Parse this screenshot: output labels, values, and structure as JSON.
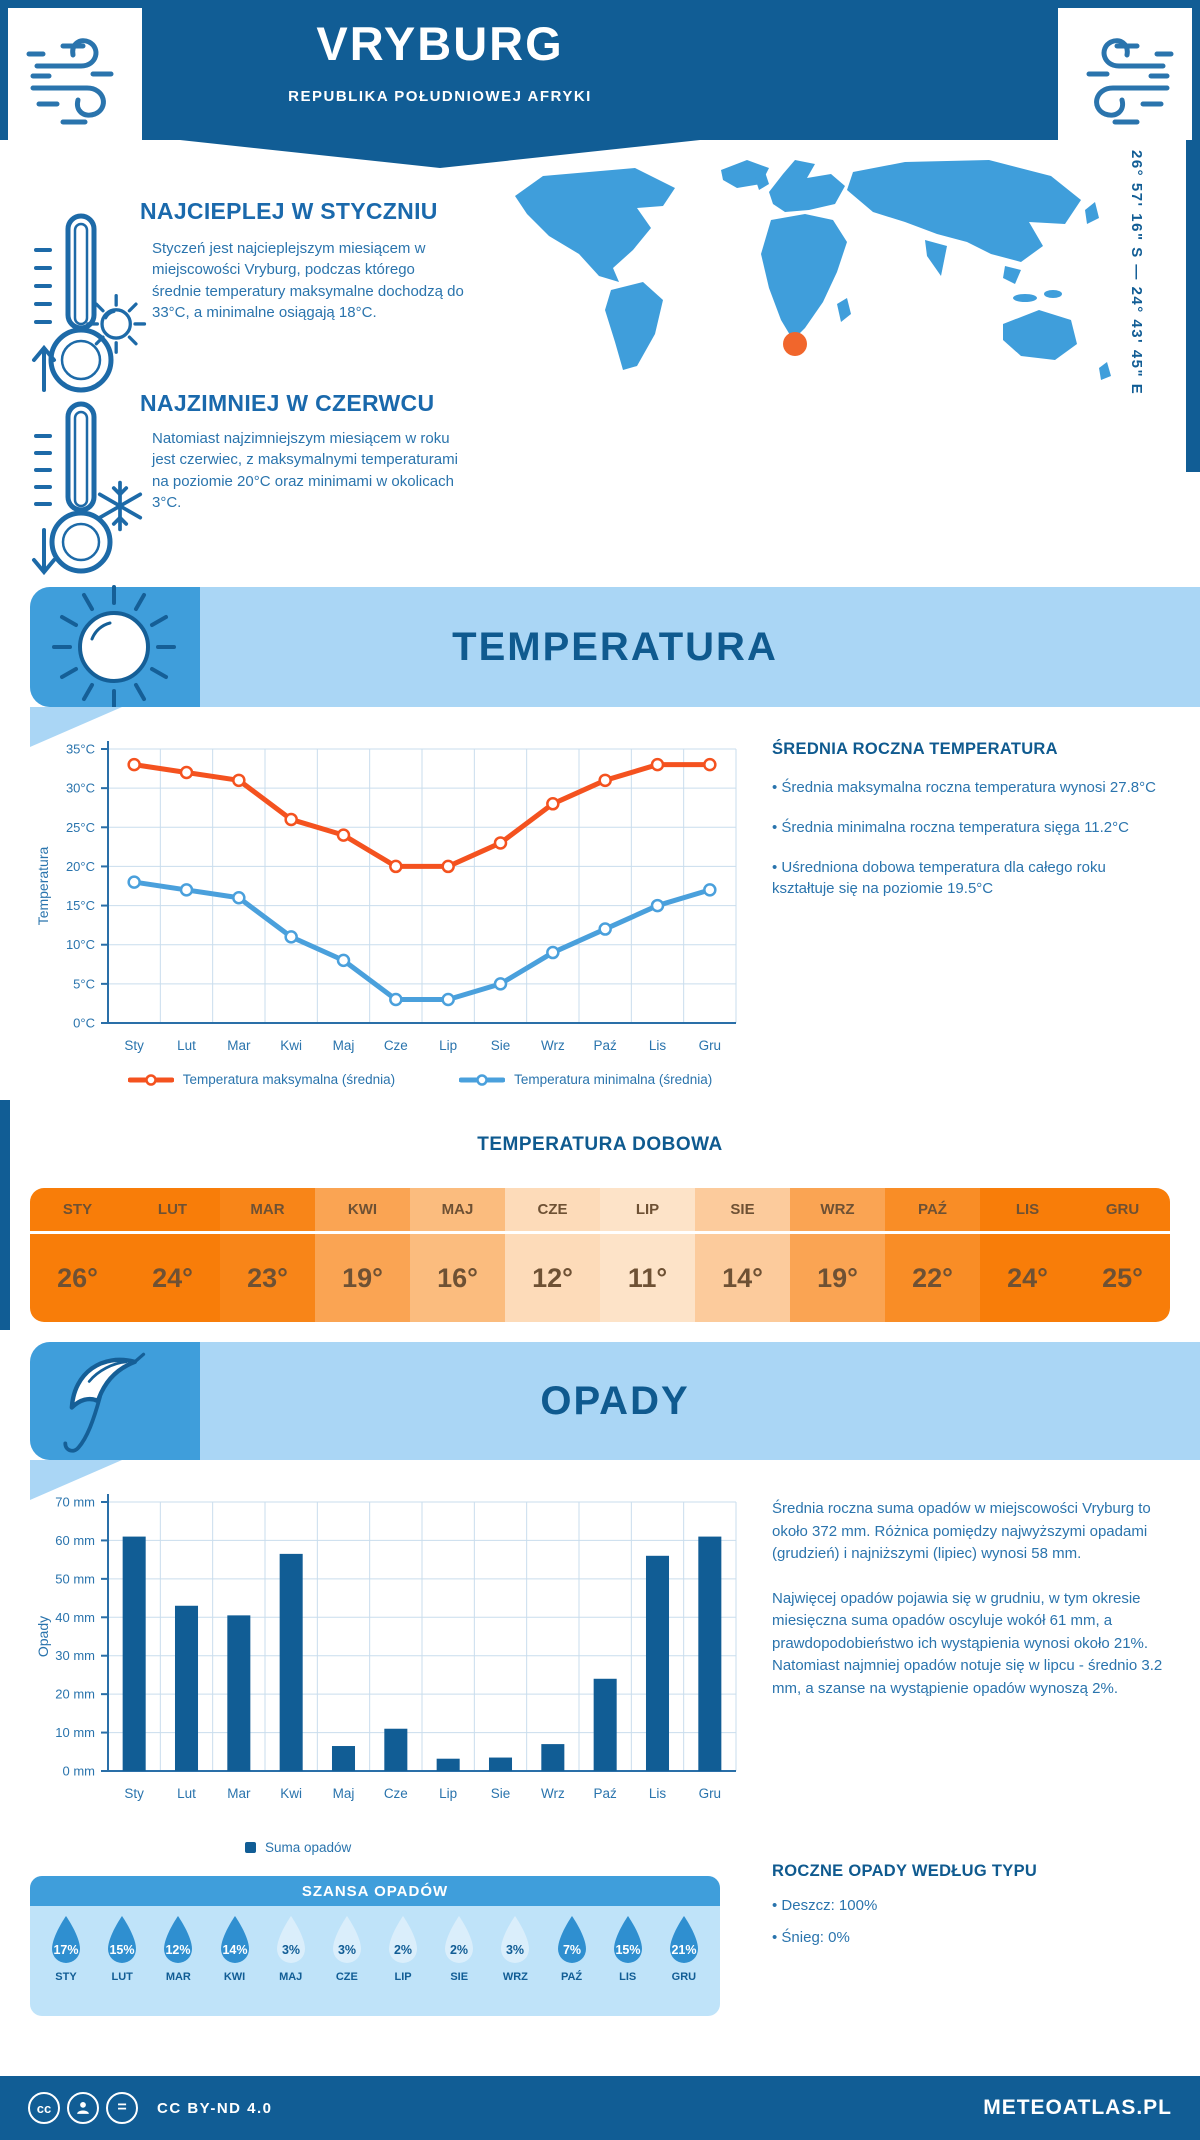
{
  "header": {
    "title": "VRYBURG",
    "subtitle": "REPUBLIKA POŁUDNIOWEJ AFRYKI"
  },
  "map": {
    "coordinates": "26° 57' 16\" S — 24° 43' 45\" E",
    "land_color": "#3f9edb",
    "marker_color": "#f1662c"
  },
  "highlights": {
    "warm": {
      "title": "NAJCIEPLEJ W STYCZNIU",
      "text": "Styczeń jest najcieplejszym miesiącem w miejscowości Vryburg, podczas którego średnie temperatury maksymalne dochodzą do 33°C, a minimalne osiągają 18°C."
    },
    "cold": {
      "title": "NAJZIMNIEJ W CZERWCU",
      "text": "Natomiast najzimniejszym miesiącem w roku jest czerwiec, z maksymalnymi temperaturami na poziomie 20°C oraz minimami w okolicach 3°C."
    }
  },
  "temperature": {
    "banner_title": "TEMPERATURA",
    "summary_title": "ŚREDNIA ROCZNA TEMPERATURA",
    "bullets": [
      "• Średnia maksymalna roczna temperatura wynosi 27.8°C",
      "• Średnia minimalna roczna temperatura sięga 11.2°C",
      "• Uśredniona dobowa temperatura dla całego roku kształtuje się na poziomie 19.5°C"
    ],
    "daily_title": "TEMPERATURA DOBOWA",
    "daily": {
      "months": [
        "STY",
        "LUT",
        "MAR",
        "KWI",
        "MAJ",
        "CZE",
        "LIP",
        "SIE",
        "WRZ",
        "PAŹ",
        "LIS",
        "GRU"
      ],
      "values": [
        "26°",
        "24°",
        "23°",
        "19°",
        "16°",
        "12°",
        "11°",
        "14°",
        "19°",
        "22°",
        "24°",
        "25°"
      ],
      "colors": [
        "#f87d09",
        "#f87d09",
        "#f88518",
        "#faa453",
        "#fbbc7e",
        "#fddbb9",
        "#fde3c8",
        "#fccb9c",
        "#faa453",
        "#f98d26",
        "#f87d09",
        "#f87d09"
      ],
      "text_color": "#6e5134"
    }
  },
  "precipitation": {
    "banner_title": "OPADY",
    "paragraphs": [
      "Średnia roczna suma opadów w miejscowości Vryburg to około 372 mm. Różnica pomiędzy najwyższymi opadami (grudzień) i najniższymi (lipiec) wynosi 58 mm.",
      "Najwięcej opadów pojawia się w grudniu, w tym okresie miesięczna suma opadów oscyluje wokół 61 mm, a prawdopodobieństwo ich wystąpienia wynosi około 21%. Natomiast najmniej opadów notuje się w lipcu - średnio 3.2 mm, a szanse na wystąpienie opadów wynoszą 2%."
    ],
    "type_title": "ROCZNE OPADY WEDŁUG TYPU",
    "type_bullets": [
      "• Deszcz: 100%",
      "• Śnieg: 0%"
    ],
    "chance": {
      "title": "SZANSA OPADÓW",
      "months": [
        "STY",
        "LUT",
        "MAR",
        "KWI",
        "MAJ",
        "CZE",
        "LIP",
        "SIE",
        "WRZ",
        "PAŹ",
        "LIS",
        "GRU"
      ],
      "values": [
        "17%",
        "15%",
        "12%",
        "14%",
        "3%",
        "3%",
        "2%",
        "2%",
        "3%",
        "7%",
        "15%",
        "21%"
      ],
      "dark": [
        true,
        true,
        true,
        true,
        false,
        false,
        false,
        false,
        false,
        true,
        true,
        true
      ],
      "dark_color": "#2f8fd0",
      "light_color": "#daeefb",
      "label_color": "#115d95"
    }
  },
  "footer": {
    "cc_label": "cc",
    "nd_label": "=",
    "license": "CC BY-ND 4.0",
    "brand": "METEOATLAS.PL"
  },
  "chart_data": [
    {
      "type": "line",
      "categories": [
        "Sty",
        "Lut",
        "Mar",
        "Kwi",
        "Maj",
        "Cze",
        "Lip",
        "Sie",
        "Wrz",
        "Paź",
        "Lis",
        "Gru"
      ],
      "title": "",
      "xlabel": "",
      "ylabel": "Temperatura",
      "ylim": [
        0,
        35
      ],
      "ytick_step": 5,
      "ytick_suffix": "°C",
      "grid": true,
      "legend_position": "bottom",
      "series": [
        {
          "name": "Temperatura maksymalna (średnia)",
          "color": "#f4521f",
          "values": [
            33,
            32,
            31,
            26,
            24,
            20,
            20,
            23,
            28,
            31,
            33,
            33
          ]
        },
        {
          "name": "Temperatura minimalna (średnia)",
          "color": "#4aa0dc",
          "values": [
            18,
            17,
            16,
            11,
            8,
            3,
            3,
            5,
            9,
            12,
            15,
            17
          ]
        }
      ]
    },
    {
      "type": "bar",
      "categories": [
        "Sty",
        "Lut",
        "Mar",
        "Kwi",
        "Maj",
        "Cze",
        "Lip",
        "Sie",
        "Wrz",
        "Paź",
        "Lis",
        "Gru"
      ],
      "title": "",
      "xlabel": "",
      "ylabel": "Opady",
      "ylim": [
        0,
        70
      ],
      "ytick_step": 10,
      "ytick_suffix": " mm",
      "grid": true,
      "legend_position": "bottom",
      "series": [
        {
          "name": "Suma opadów",
          "color": "#115d95",
          "values": [
            61,
            43,
            40.5,
            56.5,
            6.5,
            11,
            3.2,
            3.5,
            7,
            24,
            56,
            61
          ]
        }
      ]
    }
  ]
}
